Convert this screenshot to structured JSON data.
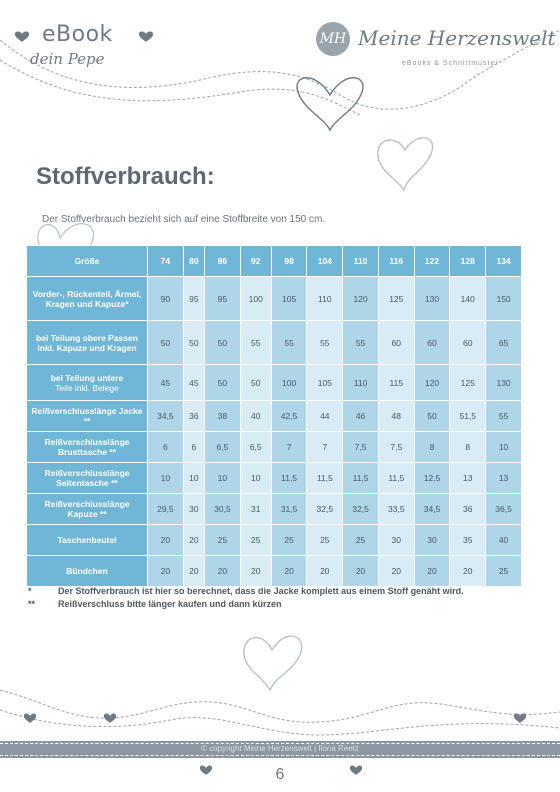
{
  "header": {
    "ebook_title": "eBook",
    "ebook_subtitle": "dein Pepe",
    "brand_monogram": "MH",
    "brand_name": "Meine Herzenswelt",
    "brand_tagline": "eBooks & Schnittmuster"
  },
  "content": {
    "title": "Stoffverbrauch:",
    "intro": "Der Stoffverbrauch bezieht sich auf eine Stoffbreite von 150 cm."
  },
  "table": {
    "header_label": "Größe",
    "sizes": [
      "74",
      "80",
      "86",
      "92",
      "98",
      "104",
      "110",
      "116",
      "122",
      "128",
      "134"
    ],
    "rows": [
      {
        "label": "Vorder-, Rückenteil, Ärmel, Kragen und Kapuze*",
        "note": "",
        "values": [
          "90",
          "95",
          "95",
          "100",
          "105",
          "110",
          "120",
          "125",
          "130",
          "140",
          "150"
        ]
      },
      {
        "label": "bei Teilung obere Passen inkl. Kapuze und Kragen",
        "note": "",
        "values": [
          "50",
          "50",
          "50",
          "55",
          "55",
          "55",
          "55",
          "60",
          "60",
          "60",
          "65"
        ]
      },
      {
        "label": "bei Teilung untere",
        "note": "Teile inkl. Belege",
        "values": [
          "45",
          "45",
          "50",
          "50",
          "100",
          "105",
          "110",
          "115",
          "120",
          "125",
          "130"
        ]
      },
      {
        "label": "Reißverschlusslänge Jacke **",
        "note": "",
        "values": [
          "34,5",
          "36",
          "38",
          "40",
          "42,5",
          "44",
          "46",
          "48",
          "50",
          "51,5",
          "55"
        ]
      },
      {
        "label": "Reißverschlusslänge Brusttasche **",
        "note": "",
        "values": [
          "6",
          "6",
          "6,5",
          "6,5",
          "7",
          "7",
          "7,5",
          "7,5",
          "8",
          "8",
          "10"
        ]
      },
      {
        "label": "Reißverschlusslänge Seitentasche **",
        "note": "",
        "values": [
          "10",
          "10",
          "10",
          "10",
          "11,5",
          "11,5",
          "11,5",
          "11,5",
          "12,5",
          "13",
          "13"
        ]
      },
      {
        "label": "Reißverschlusslänge Kapuze **",
        "note": "",
        "values": [
          "29,5",
          "30",
          "30,5",
          "31",
          "31,5",
          "32,5",
          "32,5",
          "33,5",
          "34,5",
          "36",
          "36,5"
        ]
      },
      {
        "label": "Taschenbeutel",
        "note": "",
        "values": [
          "20",
          "20",
          "25",
          "25",
          "25",
          "25",
          "25",
          "30",
          "30",
          "35",
          "40"
        ]
      },
      {
        "label": "Bündchen",
        "note": "",
        "values": [
          "20",
          "20",
          "20",
          "20",
          "20",
          "20",
          "20",
          "20",
          "20",
          "20",
          "25"
        ]
      }
    ]
  },
  "notes": [
    {
      "mark": "*",
      "text": "Der Stoffverbrauch ist hier so berechnet, dass die Jacke komplett aus einem Stoff genäht wird."
    },
    {
      "mark": "**",
      "text": "Reißverschluss bitte länger kaufen und dann kürzen"
    }
  ],
  "footer": {
    "copyright": "© copyright Meine Herzenswelt | Ilona Reetz",
    "page_number": "6"
  },
  "colors": {
    "table_header": "#70b7d7",
    "cell_light": "#d9ecf5",
    "cell_mid": "#aed6e8",
    "text_gray": "#5e6873",
    "footer_bar": "#8c97a1"
  }
}
